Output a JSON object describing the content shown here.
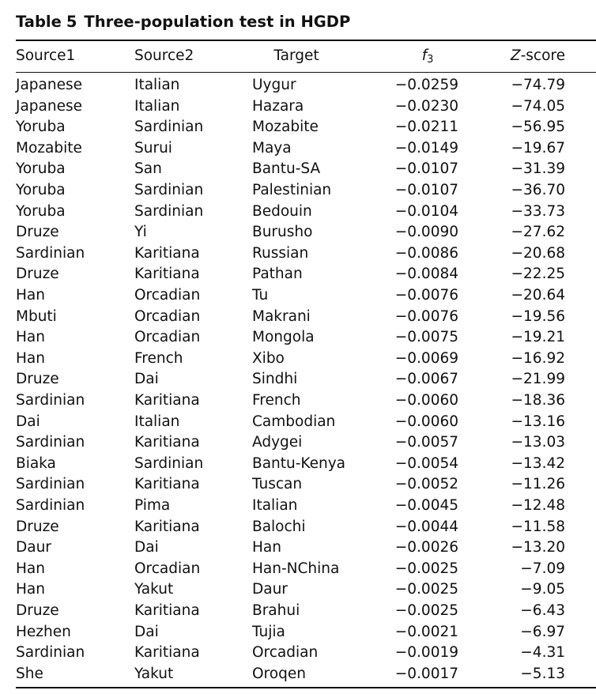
{
  "caption": {
    "label": "Table",
    "number": "5",
    "title": "Three-population test in HGDP"
  },
  "headers": {
    "source1": "Source1",
    "source2": "Source2",
    "target": "Target",
    "f3_letter": "f",
    "f3_sub": "3",
    "z_letter": "Z",
    "z_rest": "-score"
  },
  "rows": [
    [
      "Japanese",
      "Italian",
      "Uygur",
      "−0.0259",
      "−74.79"
    ],
    [
      "Japanese",
      "Italian",
      "Hazara",
      "−0.0230",
      "−74.05"
    ],
    [
      "Yoruba",
      "Sardinian",
      "Mozabite",
      "−0.0211",
      "−56.95"
    ],
    [
      "Mozabite",
      "Surui",
      "Maya",
      "−0.0149",
      "−19.67"
    ],
    [
      "Yoruba",
      "San",
      "Bantu-SA",
      "−0.0107",
      "−31.39"
    ],
    [
      "Yoruba",
      "Sardinian",
      "Palestinian",
      "−0.0107",
      "−36.70"
    ],
    [
      "Yoruba",
      "Sardinian",
      "Bedouin",
      "−0.0104",
      "−33.73"
    ],
    [
      "Druze",
      "Yi",
      "Burusho",
      "−0.0090",
      "−27.62"
    ],
    [
      "Sardinian",
      "Karitiana",
      "Russian",
      "−0.0086",
      "−20.68"
    ],
    [
      "Druze",
      "Karitiana",
      "Pathan",
      "−0.0084",
      "−22.25"
    ],
    [
      "Han",
      "Orcadian",
      "Tu",
      "−0.0076",
      "−20.64"
    ],
    [
      "Mbuti",
      "Orcadian",
      "Makrani",
      "−0.0076",
      "−19.56"
    ],
    [
      "Han",
      "Orcadian",
      "Mongola",
      "−0.0075",
      "−19.21"
    ],
    [
      "Han",
      "French",
      "Xibo",
      "−0.0069",
      "−16.92"
    ],
    [
      "Druze",
      "Dai",
      "Sindhi",
      "−0.0067",
      "−21.99"
    ],
    [
      "Sardinian",
      "Karitiana",
      "French",
      "−0.0060",
      "−18.36"
    ],
    [
      "Dai",
      "Italian",
      "Cambodian",
      "−0.0060",
      "−13.16"
    ],
    [
      "Sardinian",
      "Karitiana",
      "Adygei",
      "−0.0057",
      "−13.03"
    ],
    [
      "Biaka",
      "Sardinian",
      "Bantu-Kenya",
      "−0.0054",
      "−13.42"
    ],
    [
      "Sardinian",
      "Karitiana",
      "Tuscan",
      "−0.0052",
      "−11.26"
    ],
    [
      "Sardinian",
      "Pima",
      "Italian",
      "−0.0045",
      "−12.48"
    ],
    [
      "Druze",
      "Karitiana",
      "Balochi",
      "−0.0044",
      "−11.58"
    ],
    [
      "Daur",
      "Dai",
      "Han",
      "−0.0026",
      "−13.20"
    ],
    [
      "Han",
      "Orcadian",
      "Han-NChina",
      "−0.0025",
      "−7.09"
    ],
    [
      "Han",
      "Yakut",
      "Daur",
      "−0.0025",
      "−9.05"
    ],
    [
      "Druze",
      "Karitiana",
      "Brahui",
      "−0.0025",
      "−6.43"
    ],
    [
      "Hezhen",
      "Dai",
      "Tujia",
      "−0.0021",
      "−6.97"
    ],
    [
      "Sardinian",
      "Karitiana",
      "Orcadian",
      "−0.0019",
      "−4.31"
    ],
    [
      "She",
      "Yakut",
      "Oroqen",
      "−0.0017",
      "−5.13"
    ]
  ]
}
